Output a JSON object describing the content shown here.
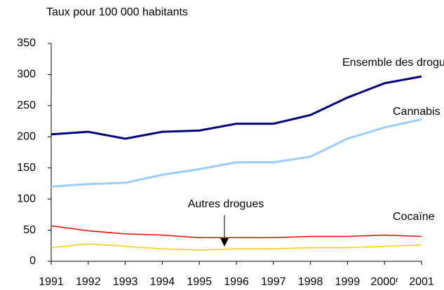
{
  "chart_data": {
    "type": "line",
    "y_axis_label": "Taux pour 100 000 habitants",
    "categories": [
      "1991",
      "1992",
      "1993",
      "1994",
      "1995",
      "1996",
      "1997",
      "1998",
      "1999",
      "2000ʳ",
      "2001"
    ],
    "series": [
      {
        "name": "Ensemble des drogues",
        "color": "#000080",
        "values": [
          204,
          208,
          197,
          208,
          210,
          221,
          221,
          235,
          263,
          286,
          297
        ]
      },
      {
        "name": "Cannabis",
        "color": "#99ccff",
        "values": [
          120,
          124,
          126,
          139,
          148,
          159,
          159,
          168,
          197,
          215,
          228
        ]
      },
      {
        "name": "Cocaïne",
        "color": "#ff0000",
        "values": [
          57,
          49,
          44,
          42,
          38,
          38,
          38,
          40,
          40,
          42,
          40
        ]
      },
      {
        "name": "Autres drogues",
        "color": "#ffcc00",
        "values": [
          22,
          28,
          24,
          20,
          18,
          20,
          20,
          22,
          22,
          24,
          26
        ]
      }
    ],
    "ylim": [
      0,
      350
    ],
    "yticks": [
      0,
      50,
      100,
      150,
      200,
      250,
      300,
      350
    ],
    "grid": false
  }
}
